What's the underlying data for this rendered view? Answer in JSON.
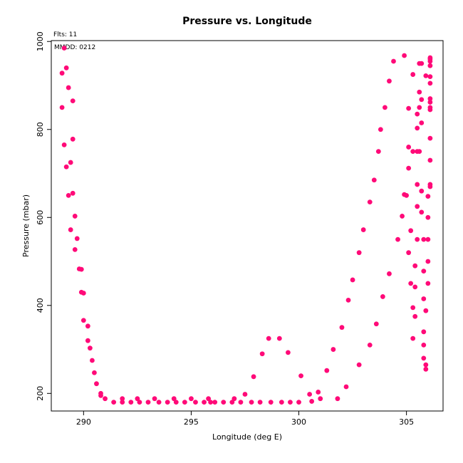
{
  "chart_data": {
    "type": "scatter",
    "title": "Pressure vs. Longitude",
    "xlabel": "Longitude (deg E)",
    "ylabel": "Pressure (mbar)",
    "annotations": [
      "Flts: 11",
      "MMDD: 0212"
    ],
    "xlim": [
      288.5,
      306.7
    ],
    "ylim": [
      1002,
      160
    ],
    "y_reversed": true,
    "xticks": [
      290,
      295,
      300,
      305
    ],
    "yticks": [
      200,
      400,
      600,
      800,
      1000
    ],
    "grid": false,
    "marker_color": "#ff0a78",
    "series": [
      {
        "points": [
          [
            289.0,
            850
          ],
          [
            289.0,
            928
          ],
          [
            289.1,
            985
          ],
          [
            289.1,
            765
          ],
          [
            289.2,
            715
          ],
          [
            289.2,
            940
          ],
          [
            289.3,
            650
          ],
          [
            289.3,
            895
          ],
          [
            289.4,
            725
          ],
          [
            289.4,
            572
          ],
          [
            289.5,
            865
          ],
          [
            289.5,
            778
          ],
          [
            289.5,
            655
          ],
          [
            289.6,
            603
          ],
          [
            289.6,
            527
          ],
          [
            289.7,
            552
          ],
          [
            289.8,
            483
          ],
          [
            289.9,
            430
          ],
          [
            289.9,
            482
          ],
          [
            290.0,
            428
          ],
          [
            290.0,
            366
          ],
          [
            290.2,
            320
          ],
          [
            290.2,
            353
          ],
          [
            290.3,
            303
          ],
          [
            290.4,
            275
          ],
          [
            290.5,
            247
          ],
          [
            290.6,
            222
          ],
          [
            290.8,
            195
          ],
          [
            290.8,
            200
          ],
          [
            291.0,
            188
          ],
          [
            291.4,
            180
          ],
          [
            291.8,
            180
          ],
          [
            291.8,
            188
          ],
          [
            292.2,
            180
          ],
          [
            292.5,
            188
          ],
          [
            292.6,
            180
          ],
          [
            293.0,
            180
          ],
          [
            293.3,
            188
          ],
          [
            293.5,
            180
          ],
          [
            293.9,
            180
          ],
          [
            294.2,
            188
          ],
          [
            294.3,
            180
          ],
          [
            294.7,
            180
          ],
          [
            295.0,
            188
          ],
          [
            295.2,
            180
          ],
          [
            295.6,
            180
          ],
          [
            295.8,
            188
          ],
          [
            295.9,
            180
          ],
          [
            296.1,
            180
          ],
          [
            296.5,
            180
          ],
          [
            296.9,
            180
          ],
          [
            297.0,
            188
          ],
          [
            297.3,
            180
          ],
          [
            297.5,
            198
          ],
          [
            297.8,
            180
          ],
          [
            297.9,
            238
          ],
          [
            298.2,
            180
          ],
          [
            298.3,
            290
          ],
          [
            298.6,
            325
          ],
          [
            298.7,
            180
          ],
          [
            299.1,
            325
          ],
          [
            299.2,
            180
          ],
          [
            299.5,
            293
          ],
          [
            299.6,
            180
          ],
          [
            300.0,
            180
          ],
          [
            300.1,
            240
          ],
          [
            300.5,
            198
          ],
          [
            300.6,
            182
          ],
          [
            300.9,
            203
          ],
          [
            301.0,
            188
          ],
          [
            301.3,
            252
          ],
          [
            301.6,
            300
          ],
          [
            301.8,
            188
          ],
          [
            302.0,
            350
          ],
          [
            302.2,
            215
          ],
          [
            302.3,
            412
          ],
          [
            302.5,
            458
          ],
          [
            302.8,
            520
          ],
          [
            302.8,
            265
          ],
          [
            303.0,
            572
          ],
          [
            303.3,
            310
          ],
          [
            303.3,
            635
          ],
          [
            303.5,
            685
          ],
          [
            303.6,
            358
          ],
          [
            303.7,
            750
          ],
          [
            303.8,
            800
          ],
          [
            303.9,
            420
          ],
          [
            304.0,
            850
          ],
          [
            304.2,
            472
          ],
          [
            304.2,
            910
          ],
          [
            304.4,
            955
          ],
          [
            304.6,
            550
          ],
          [
            304.8,
            603
          ],
          [
            304.9,
            968
          ],
          [
            304.9,
            652
          ],
          [
            305.0,
            650
          ],
          [
            305.1,
            520
          ],
          [
            305.1,
            848
          ],
          [
            305.1,
            760
          ],
          [
            305.1,
            712
          ],
          [
            305.2,
            450
          ],
          [
            305.2,
            570
          ],
          [
            305.3,
            395
          ],
          [
            305.3,
            325
          ],
          [
            305.3,
            750
          ],
          [
            305.3,
            925
          ],
          [
            305.4,
            442
          ],
          [
            305.4,
            490
          ],
          [
            305.4,
            375
          ],
          [
            305.5,
            550
          ],
          [
            305.5,
            625
          ],
          [
            305.5,
            675
          ],
          [
            305.5,
            750
          ],
          [
            305.5,
            803
          ],
          [
            305.5,
            835
          ],
          [
            305.6,
            885
          ],
          [
            305.6,
            850
          ],
          [
            305.6,
            950
          ],
          [
            305.7,
            815
          ],
          [
            305.7,
            868
          ],
          [
            305.7,
            950
          ],
          [
            305.6,
            750
          ],
          [
            305.7,
            660
          ],
          [
            305.7,
            612
          ],
          [
            305.8,
            550
          ],
          [
            305.8,
            478
          ],
          [
            305.8,
            415
          ],
          [
            305.8,
            340
          ],
          [
            305.8,
            310
          ],
          [
            305.8,
            280
          ],
          [
            305.9,
            255
          ],
          [
            305.9,
            265
          ],
          [
            305.9,
            388
          ],
          [
            306.0,
            450
          ],
          [
            306.0,
            500
          ],
          [
            305.9,
            922
          ],
          [
            306.0,
            648
          ],
          [
            306.0,
            600
          ],
          [
            306.0,
            550
          ],
          [
            306.1,
            675
          ],
          [
            306.1,
            670
          ],
          [
            306.1,
            730
          ],
          [
            306.1,
            780
          ],
          [
            306.1,
            845
          ],
          [
            306.1,
            850
          ],
          [
            306.1,
            862
          ],
          [
            306.1,
            870
          ],
          [
            306.1,
            905
          ],
          [
            306.1,
            920
          ],
          [
            306.1,
            945
          ],
          [
            306.1,
            955
          ],
          [
            306.1,
            960
          ],
          [
            306.1,
            963
          ]
        ]
      }
    ]
  }
}
